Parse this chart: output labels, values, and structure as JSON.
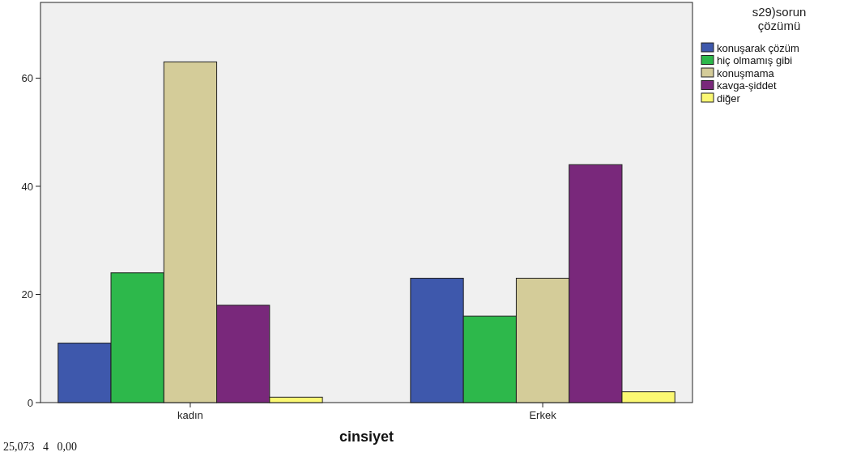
{
  "chart_data": {
    "type": "bar",
    "xlabel": "cinsiyet",
    "legend_title": "s29)sorun çözümü",
    "categories": [
      "kadın",
      "Erkek"
    ],
    "series": [
      {
        "name": "konuşarak çözüm",
        "color": "#3e58ac",
        "values": [
          11,
          23
        ]
      },
      {
        "name": "hiç olmamış gibi",
        "color": "#2db84b",
        "values": [
          24,
          16
        ]
      },
      {
        "name": "konuşmama",
        "color": "#d4cc99",
        "values": [
          63,
          23
        ]
      },
      {
        "name": "kavga-şiddet",
        "color": "#79287b",
        "values": [
          18,
          44
        ]
      },
      {
        "name": "diğer",
        "color": "#fbf873",
        "values": [
          1,
          2
        ]
      }
    ],
    "ylim": [
      0,
      74
    ],
    "yticks": [
      0,
      20,
      40,
      60
    ],
    "grid": false,
    "legend": "right",
    "annotations": [
      "25,073   4   0,00"
    ]
  }
}
